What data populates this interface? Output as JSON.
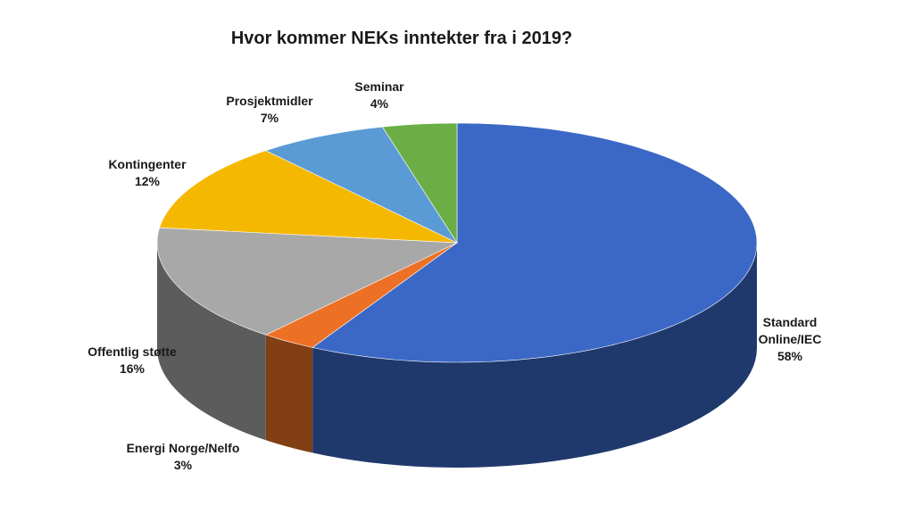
{
  "chart_data": {
    "type": "pie",
    "title": "Hvor kommer NEKs inntekter fra i 2019?",
    "categories": [
      "Standard Online/IEC",
      "Energi Norge/Nelfo",
      "Offentlig støtte",
      "Kontingenter",
      "Prosjektmidler",
      "Seminar"
    ],
    "values": [
      58,
      3,
      16,
      12,
      7,
      4
    ],
    "value_labels": [
      "58%",
      "3%",
      "16%",
      "12%",
      "7%",
      "4%"
    ],
    "colors": [
      "#3b68c6",
      "#ed7125",
      "#a8a8a8",
      "#f5b800",
      "#5b9bd5",
      "#6aae45"
    ]
  }
}
